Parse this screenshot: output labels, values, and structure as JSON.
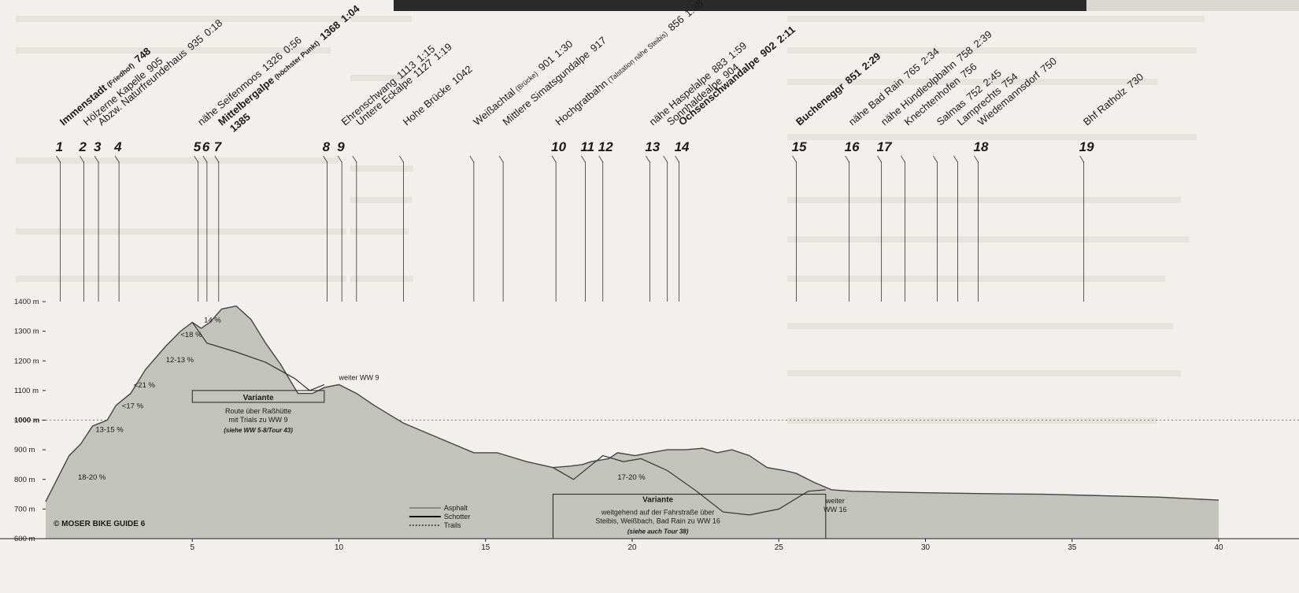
{
  "chart_data": {
    "type": "area",
    "title": "",
    "xlabel": "",
    "ylabel": "",
    "xlim": [
      0,
      40
    ],
    "ylim": [
      600,
      1400
    ],
    "x_ticks": [
      5,
      10,
      15,
      20,
      25,
      30,
      35,
      40
    ],
    "y_ticks": [
      {
        "value": 600,
        "label": "600 m"
      },
      {
        "value": 700,
        "label": "700 m"
      },
      {
        "value": 800,
        "label": "800 m"
      },
      {
        "value": 900,
        "label": "900 m"
      },
      {
        "value": 1000,
        "label": "1000 m"
      },
      {
        "value": 1100,
        "label": "1100 m"
      },
      {
        "value": 1200,
        "label": "1200 m"
      },
      {
        "value": 1300,
        "label": "1300 m"
      },
      {
        "value": 1400,
        "label": "1400 m"
      }
    ],
    "profile": {
      "x": [
        0,
        0.8,
        1.2,
        1.6,
        2.1,
        2.4,
        2.9,
        3.4,
        4.1,
        4.6,
        5.0,
        5.3,
        5.6,
        6.0,
        6.5,
        7.0,
        7.5,
        8.0,
        8.6,
        9.1,
        9.5,
        10.0,
        10.6,
        11.2,
        12.2,
        13.4,
        14.6,
        15.4,
        16.4,
        17.3,
        17.9,
        18.3,
        18.6,
        19.2,
        19.5,
        20.1,
        20.6,
        21.2,
        21.8,
        22.4,
        22.9,
        23.4,
        24.0,
        24.6,
        25.2,
        25.6,
        26.2,
        26.8,
        27.5,
        30,
        32,
        34,
        36,
        38,
        40
      ],
      "elevation": [
        725,
        880,
        920,
        980,
        1000,
        1050,
        1090,
        1170,
        1250,
        1300,
        1330,
        1310,
        1330,
        1375,
        1385,
        1340,
        1260,
        1190,
        1090,
        1090,
        1110,
        1120,
        1090,
        1050,
        990,
        940,
        890,
        890,
        860,
        840,
        845,
        850,
        860,
        870,
        890,
        880,
        890,
        900,
        900,
        905,
        890,
        900,
        880,
        840,
        830,
        820,
        790,
        765,
        760,
        755,
        752,
        750,
        745,
        740,
        730
      ]
    },
    "variant_1": {
      "x": [
        5.0,
        5.5,
        6.5,
        7.5,
        8.5,
        9.0,
        9.5
      ],
      "elevation": [
        1330,
        1260,
        1230,
        1195,
        1140,
        1100,
        1120
      ]
    },
    "variant_2": {
      "x": [
        17.3,
        18.0,
        19.0,
        19.7,
        20.3,
        21.2,
        22.2,
        23.1,
        24.0,
        25.0,
        26.0,
        26.6
      ],
      "elevation": [
        840,
        800,
        880,
        860,
        870,
        830,
        760,
        690,
        680,
        700,
        760,
        765
      ]
    },
    "waypoints": [
      {
        "num": "1",
        "x": 0.5,
        "label": "Immenstadt",
        "small": "(Friedhof)",
        "elev": "748",
        "time": "",
        "bold": true
      },
      {
        "num": "2",
        "x": 1.3,
        "label": "Hölzerne Kapelle",
        "small": "",
        "elev": "905",
        "time": "",
        "bold": false
      },
      {
        "num": "3",
        "x": 1.8,
        "label": "Abzw. Naturfreundehaus",
        "small": "",
        "elev": "935",
        "time": "0:18",
        "bold": false
      },
      {
        "num": "4",
        "x": 2.5,
        "label": "",
        "small": "",
        "elev": "",
        "time": "",
        "bold": false
      },
      {
        "num": "5",
        "x": 5.2,
        "label": "nähe Seifenmoos",
        "small": "",
        "elev": "1326",
        "time": "0:56",
        "bold": false
      },
      {
        "num": "6",
        "x": 5.5,
        "label": "",
        "small": "",
        "elev": "",
        "time": "",
        "bold": false
      },
      {
        "num": "7",
        "x": 5.9,
        "label": "Mittelbergalpe",
        "small": "(höchster Punkt)",
        "elev": "1368",
        "time": "1:04",
        "bold": true,
        "extra": "1385"
      },
      {
        "num": "8",
        "x": 9.6,
        "label": "",
        "small": "",
        "elev": "",
        "time": "",
        "bold": false
      },
      {
        "num": "9",
        "x": 10.1,
        "label": "Ehrenschwang",
        "small": "",
        "elev": "1113",
        "time": "1:15",
        "bold": false
      },
      {
        "num": "",
        "x": 10.6,
        "label": "Untere Eckalpe",
        "small": "",
        "elev": "1127",
        "time": "1:19",
        "bold": false
      },
      {
        "num": "",
        "x": 12.2,
        "label": "Hohe Brücke",
        "small": "",
        "elev": "1042",
        "time": "",
        "bold": false
      },
      {
        "num": "",
        "x": 14.6,
        "label": "Weißachtal",
        "small": "(Brücke)",
        "elev": "901",
        "time": "1:30",
        "bold": false
      },
      {
        "num": "",
        "x": 15.6,
        "label": "Mittlere Simatsgundalpe",
        "small": "",
        "elev": "917",
        "time": "",
        "bold": false
      },
      {
        "num": "10",
        "x": 17.4,
        "label": "Hochgratbahn",
        "small": "(Talstation nähe Steibis)",
        "elev": "856",
        "time": "1:38",
        "bold": false
      },
      {
        "num": "11",
        "x": 18.4,
        "label": "",
        "small": "",
        "elev": "",
        "time": "",
        "bold": false
      },
      {
        "num": "12",
        "x": 19.0,
        "label": "",
        "small": "",
        "elev": "",
        "time": "",
        "bold": false
      },
      {
        "num": "13",
        "x": 20.6,
        "label": "nähe Haspelalpe",
        "small": "",
        "elev": "883",
        "time": "1:59",
        "bold": false
      },
      {
        "num": "",
        "x": 21.2,
        "label": "Sonnhaldealpe",
        "small": "",
        "elev": "904",
        "time": "",
        "bold": false
      },
      {
        "num": "14",
        "x": 21.6,
        "label": "Ochsenschwandalpe",
        "small": "",
        "elev": "902",
        "time": "2:11",
        "bold": true
      },
      {
        "num": "15",
        "x": 25.6,
        "label": "Bucheneggr",
        "small": "",
        "elev": "851",
        "time": "2:29",
        "bold": true
      },
      {
        "num": "16",
        "x": 27.4,
        "label": "nähe Bad Rain",
        "small": "",
        "elev": "765",
        "time": "2:34",
        "bold": false
      },
      {
        "num": "17",
        "x": 28.5,
        "label": "nähe Hündleolpbahn",
        "small": "",
        "elev": "758",
        "time": "2:39",
        "bold": false
      },
      {
        "num": "",
        "x": 29.3,
        "label": "Knechtenhofen",
        "small": "",
        "elev": "756",
        "time": "",
        "bold": false
      },
      {
        "num": "",
        "x": 30.4,
        "label": "Salmas",
        "small": "",
        "elev": "752",
        "time": "2:45",
        "bold": false
      },
      {
        "num": "",
        "x": 31.1,
        "label": "Lamprechts",
        "small": "",
        "elev": "754",
        "time": "",
        "bold": false
      },
      {
        "num": "18",
        "x": 31.8,
        "label": "Wiedemannsdorf",
        "small": "",
        "elev": "750",
        "time": "",
        "bold": false
      },
      {
        "num": "19",
        "x": 35.4,
        "label": "Bhf Ratholz",
        "small": "",
        "elev": "730",
        "time": "",
        "bold": false
      }
    ],
    "gradients": [
      {
        "text": "18-20 %",
        "x": 1.1,
        "y": 800
      },
      {
        "text": "13-15 %",
        "x": 1.7,
        "y": 960
      },
      {
        "text": "<17 %",
        "x": 2.6,
        "y": 1040
      },
      {
        "text": "<21 %",
        "x": 3.0,
        "y": 1110
      },
      {
        "text": "12-13 %",
        "x": 4.1,
        "y": 1195
      },
      {
        "text": "<18 %",
        "x": 4.6,
        "y": 1280
      },
      {
        "text": "14 %",
        "x": 5.4,
        "y": 1330
      },
      {
        "text": "17-20 %",
        "x": 19.5,
        "y": 800
      }
    ],
    "annotations": [
      {
        "id": "variante1",
        "title": "Variante",
        "lines": [
          "Route über Raßhütte",
          "mit Trials zu WW 9"
        ],
        "italic": "(siehe WW 5-8/Tour 43)"
      },
      {
        "id": "weiter9",
        "text": "weiter WW 9"
      },
      {
        "id": "variante2",
        "title": "Variante",
        "lines": [
          "weitgehend auf der Fahrstraße über",
          "Steibis, Weißbach, Bad Rain zu WW 16"
        ],
        "italic": "(siehe auch Tour 38)"
      },
      {
        "id": "weiter16",
        "lines": [
          "weiter",
          "WW 16"
        ]
      }
    ],
    "legend": [
      {
        "label": "Asphalt",
        "style": "solid-thin",
        "color": "#666666"
      },
      {
        "label": "Schotter",
        "style": "solid-thick",
        "color": "#111111"
      },
      {
        "label": "Trails",
        "style": "dotted",
        "color": "#111111"
      }
    ],
    "credit": "© MOSER BIKE GUIDE 6",
    "colors": {
      "fill": "#c3c3bd",
      "line": "#444444",
      "paper": "#f1f0ec"
    }
  }
}
